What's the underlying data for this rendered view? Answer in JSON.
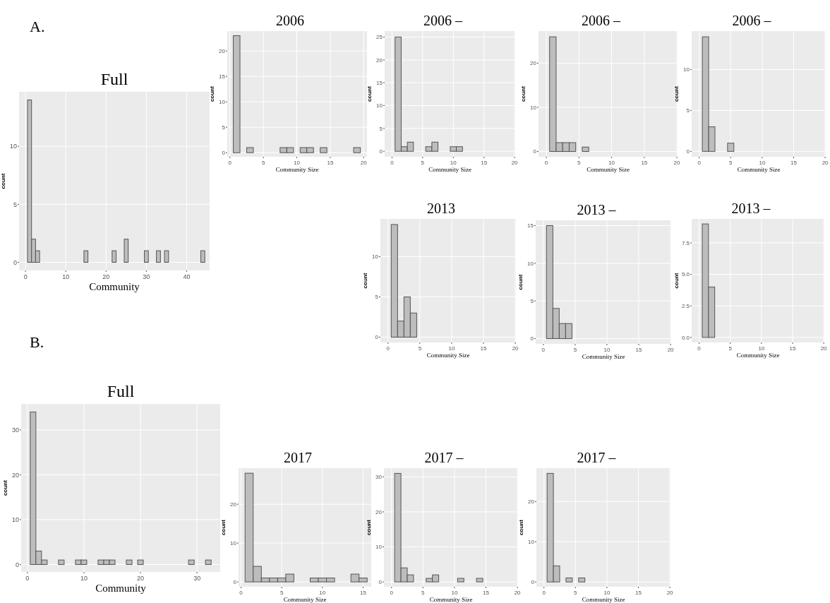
{
  "chart_data": [
    {
      "type": "histogram",
      "title": "Full",
      "xlabel": "Community",
      "ylabel": "count",
      "annotations": [
        "A."
      ],
      "grid": true,
      "bins": [
        0.5,
        1.5,
        2.5,
        3.5,
        4.5,
        5.5,
        6.5,
        7.5,
        8.5,
        9.5,
        10.5,
        11.5,
        12.5,
        13.5,
        14.5,
        15.5,
        16.5,
        17.5,
        18.5,
        19.5,
        20.5,
        21.5,
        22.5,
        23.5,
        24.5,
        25.5,
        26.5,
        27.5,
        28.5,
        29.5,
        30.5,
        31.5,
        32.5,
        33.5,
        34.5,
        35.5,
        36.5,
        37.5,
        38.5,
        39.5,
        40.5,
        41.5,
        42.5,
        43.5,
        44.5
      ],
      "values": [
        14,
        2,
        1,
        0,
        0,
        0,
        0,
        0,
        0,
        0,
        0,
        0,
        0,
        0,
        1,
        0,
        0,
        0,
        0,
        0,
        0,
        1,
        0,
        0,
        2,
        0,
        0,
        0,
        0,
        1,
        0,
        0,
        1,
        0,
        1,
        0,
        0,
        0,
        0,
        0,
        0,
        0,
        0,
        1
      ],
      "xlim": [
        -1.6,
        45.7
      ],
      "xticks": [
        0,
        10,
        20,
        30,
        40
      ],
      "ylim": [
        -0.7,
        14.7
      ],
      "yticks": [
        0,
        5,
        10
      ]
    },
    {
      "type": "histogram",
      "title": "2006",
      "xlabel": "Community Size",
      "ylabel": "count",
      "grid": true,
      "bins": [
        0.5,
        1.5,
        2.5,
        3.5,
        4.5,
        5.5,
        6.5,
        7.5,
        8.5,
        9.5,
        10.5,
        11.5,
        12.5,
        13.5,
        14.5,
        15.5,
        16.5,
        17.5,
        18.5,
        19.5
      ],
      "values": [
        23,
        0,
        1,
        0,
        0,
        0,
        0,
        1,
        1,
        0,
        1,
        1,
        0,
        1,
        0,
        0,
        0,
        0,
        1
      ],
      "xlim": [
        -0.4,
        20.5
      ],
      "xticks": [
        0,
        5,
        10,
        15,
        20
      ],
      "ylim": [
        -0.8,
        23.9
      ],
      "yticks": [
        0,
        5,
        10,
        15,
        20
      ]
    },
    {
      "type": "histogram",
      "title": "2006 –",
      "xlabel": "Community Size",
      "ylabel": "count",
      "grid": true,
      "bins": [
        -0.5,
        0.5,
        1.5,
        2.5,
        3.5,
        4.5,
        5.5,
        6.5,
        7.5,
        8.5,
        9.5,
        10.5,
        11.5,
        12.5,
        13.5,
        14.5,
        15.5,
        16.5,
        17.5,
        18.5,
        19.5
      ],
      "values": [
        0,
        25,
        1,
        2,
        0,
        0,
        1,
        2,
        0,
        0,
        1,
        1,
        0,
        0,
        0,
        0,
        0,
        0,
        0,
        0
      ],
      "xlim": [
        -1.2,
        20.1
      ],
      "xticks": [
        0,
        5,
        10,
        15,
        20
      ],
      "ylim": [
        -1.2,
        26.3
      ],
      "yticks": [
        0,
        5,
        10,
        15,
        20,
        25
      ]
    },
    {
      "type": "histogram",
      "title": "2006 –",
      "xlabel": "Community Size",
      "ylabel": "count",
      "grid": true,
      "bins": [
        -0.5,
        0.5,
        1.5,
        2.5,
        3.5,
        4.5,
        5.5,
        6.5,
        7.5,
        8.5,
        9.5,
        10.5,
        11.5,
        12.5,
        13.5,
        14.5,
        15.5,
        16.5,
        17.5,
        18.5,
        19.5
      ],
      "values": [
        0,
        26,
        2,
        2,
        2,
        0,
        1,
        0,
        0,
        0,
        0,
        0,
        0,
        0,
        0,
        0,
        0,
        0,
        0,
        0
      ],
      "xlim": [
        -1.2,
        20.1
      ],
      "xticks": [
        0,
        5,
        10,
        15,
        20
      ],
      "ylim": [
        -1.2,
        27.3
      ],
      "yticks": [
        0,
        10,
        20
      ]
    },
    {
      "type": "histogram",
      "title": "2006 –",
      "xlabel": "Community Size",
      "ylabel": "count",
      "grid": true,
      "bins": [
        -0.5,
        0.5,
        1.5,
        2.5,
        3.5,
        4.5,
        5.5,
        6.5,
        7.5,
        8.5,
        9.5,
        10.5,
        11.5,
        12.5,
        13.5,
        14.5,
        15.5,
        16.5,
        17.5,
        18.5,
        19.5
      ],
      "values": [
        0,
        14,
        3,
        0,
        0,
        1,
        0,
        0,
        0,
        0,
        0,
        0,
        0,
        0,
        0,
        0,
        0,
        0,
        0,
        0
      ],
      "xlim": [
        -1.2,
        20.1
      ],
      "xticks": [
        0,
        5,
        10,
        15,
        20
      ],
      "ylim": [
        -0.66,
        14.7
      ],
      "yticks": [
        0,
        5,
        10
      ]
    },
    {
      "type": "histogram",
      "title": "2013",
      "xlabel": "Community Size",
      "ylabel": "count",
      "grid": true,
      "bins": [
        -0.5,
        0.5,
        1.5,
        2.5,
        3.5,
        4.5,
        5.5,
        6.5,
        7.5,
        8.5,
        9.5,
        10.5,
        11.5,
        12.5,
        13.5,
        14.5,
        15.5,
        16.5,
        17.5,
        18.5,
        19.5
      ],
      "values": [
        0,
        14,
        2,
        5,
        3,
        0,
        0,
        0,
        0,
        0,
        0,
        0,
        0,
        0,
        0,
        0,
        0,
        0,
        0,
        0
      ],
      "xlim": [
        -1.2,
        20.1
      ],
      "xticks": [
        0,
        5,
        10,
        15,
        20
      ],
      "ylim": [
        -0.66,
        14.7
      ],
      "yticks": [
        0,
        5,
        10
      ]
    },
    {
      "type": "histogram",
      "title": "2013 –",
      "xlabel": "Community Size",
      "ylabel": "count",
      "grid": true,
      "bins": [
        -0.5,
        0.5,
        1.5,
        2.5,
        3.5,
        4.5,
        5.5,
        6.5,
        7.5,
        8.5,
        9.5,
        10.5,
        11.5,
        12.5,
        13.5,
        14.5,
        15.5,
        16.5,
        17.5,
        18.5,
        19.5
      ],
      "values": [
        0,
        15,
        4,
        2,
        2,
        0,
        0,
        0,
        0,
        0,
        0,
        0,
        0,
        0,
        0,
        0,
        0,
        0,
        0,
        0
      ],
      "xlim": [
        -1.2,
        20.1
      ],
      "xticks": [
        0,
        5,
        10,
        15,
        20
      ],
      "ylim": [
        -0.7,
        15.7
      ],
      "yticks": [
        0,
        5,
        10,
        15
      ]
    },
    {
      "type": "histogram",
      "title": "2013 –",
      "xlabel": "Community Size",
      "ylabel": "count",
      "grid": true,
      "bins": [
        -0.5,
        0.5,
        1.5,
        2.5,
        3.5,
        4.5,
        5.5,
        6.5,
        7.5,
        8.5,
        9.5,
        10.5,
        11.5,
        12.5,
        13.5,
        14.5,
        15.5,
        16.5,
        17.5,
        18.5,
        19.5
      ],
      "values": [
        0,
        9,
        4,
        0,
        0,
        0,
        0,
        0,
        0,
        0,
        0,
        0,
        0,
        0,
        0,
        0,
        0,
        0,
        0,
        0
      ],
      "xlim": [
        -1.2,
        20.1
      ],
      "xticks": [
        0,
        5,
        10,
        15,
        20
      ],
      "ylim": [
        -0.4,
        9.4
      ],
      "yticks": [
        {
          "value": 0,
          "label": "0.0"
        },
        {
          "value": 2.5,
          "label": "2.5"
        },
        {
          "value": 5,
          "label": "5.0"
        },
        {
          "value": 7.5,
          "label": "7.5"
        }
      ]
    },
    {
      "type": "histogram",
      "title": "Full",
      "xlabel": "Community",
      "ylabel": "count",
      "annotations": [
        "B."
      ],
      "grid": true,
      "bins": [
        0.5,
        1.5,
        2.5,
        3.5,
        4.5,
        5.5,
        6.5,
        7.5,
        8.5,
        9.5,
        10.5,
        11.5,
        12.5,
        13.5,
        14.5,
        15.5,
        16.5,
        17.5,
        18.5,
        19.5,
        20.5,
        21.5,
        22.5,
        23.5,
        24.5,
        25.5,
        26.5,
        27.5,
        28.5,
        29.5,
        30.5,
        31.5,
        32.5
      ],
      "values": [
        34,
        3,
        1,
        0,
        0,
        1,
        0,
        0,
        1,
        1,
        0,
        0,
        1,
        1,
        1,
        0,
        0,
        1,
        0,
        1,
        0,
        0,
        0,
        0,
        0,
        0,
        0,
        0,
        1,
        0,
        0,
        1
      ],
      "xlim": [
        -1.1,
        34.1
      ],
      "xticks": [
        0,
        10,
        20,
        30
      ],
      "ylim": [
        -1.66,
        35.8
      ],
      "yticks": [
        0,
        10,
        20,
        30
      ]
    },
    {
      "type": "histogram",
      "title": "2017",
      "xlabel": "Community Size",
      "ylabel": "count",
      "grid": true,
      "bins": [
        0.5,
        1.5,
        2.5,
        3.5,
        4.5,
        5.5,
        6.5,
        7.5,
        8.5,
        9.5,
        10.5,
        11.5,
        12.5,
        13.5,
        14.5,
        15.5
      ],
      "values": [
        28,
        4,
        1,
        1,
        1,
        2,
        0,
        0,
        1,
        1,
        1,
        0,
        0,
        2,
        1
      ],
      "xlim": [
        -0.3,
        16.0
      ],
      "xticks": [
        0,
        5,
        10,
        15
      ],
      "ylim": [
        -1.26,
        29.3
      ],
      "yticks": [
        0,
        10,
        20
      ]
    },
    {
      "type": "histogram",
      "title": "2017 –",
      "xlabel": "Community Size",
      "ylabel": "count",
      "grid": true,
      "bins": [
        -0.5,
        0.5,
        1.5,
        2.5,
        3.5,
        4.5,
        5.5,
        6.5,
        7.5,
        8.5,
        9.5,
        10.5,
        11.5,
        12.5,
        13.5,
        14.5,
        15.5,
        16.5,
        17.5,
        18.5,
        19.5
      ],
      "values": [
        0,
        31,
        4,
        2,
        0,
        0,
        1,
        2,
        0,
        0,
        0,
        1,
        0,
        0,
        1,
        0,
        0,
        0,
        0,
        0
      ],
      "xlim": [
        -1.2,
        20.1
      ],
      "xticks": [
        0,
        5,
        10,
        15,
        20
      ],
      "ylim": [
        -1.4,
        32.5
      ],
      "yticks": [
        0,
        10,
        20,
        30
      ]
    },
    {
      "type": "histogram",
      "title": "2017 –",
      "xlabel": "Community Size",
      "ylabel": "count",
      "grid": true,
      "bins": [
        -0.5,
        0.5,
        1.5,
        2.5,
        3.5,
        4.5,
        5.5,
        6.5,
        7.5,
        8.5,
        9.5,
        10.5,
        11.5,
        12.5,
        13.5,
        14.5,
        15.5,
        16.5,
        17.5,
        18.5,
        19.5
      ],
      "values": [
        0,
        27,
        4,
        0,
        1,
        0,
        1,
        0,
        0,
        0,
        0,
        0,
        0,
        0,
        0,
        0,
        0,
        0,
        0,
        0
      ],
      "xlim": [
        -1.2,
        20.1
      ],
      "xticks": [
        0,
        5,
        10,
        15,
        20
      ],
      "ylim": [
        -1.2,
        28.3
      ],
      "yticks": [
        0,
        10,
        20
      ]
    }
  ]
}
